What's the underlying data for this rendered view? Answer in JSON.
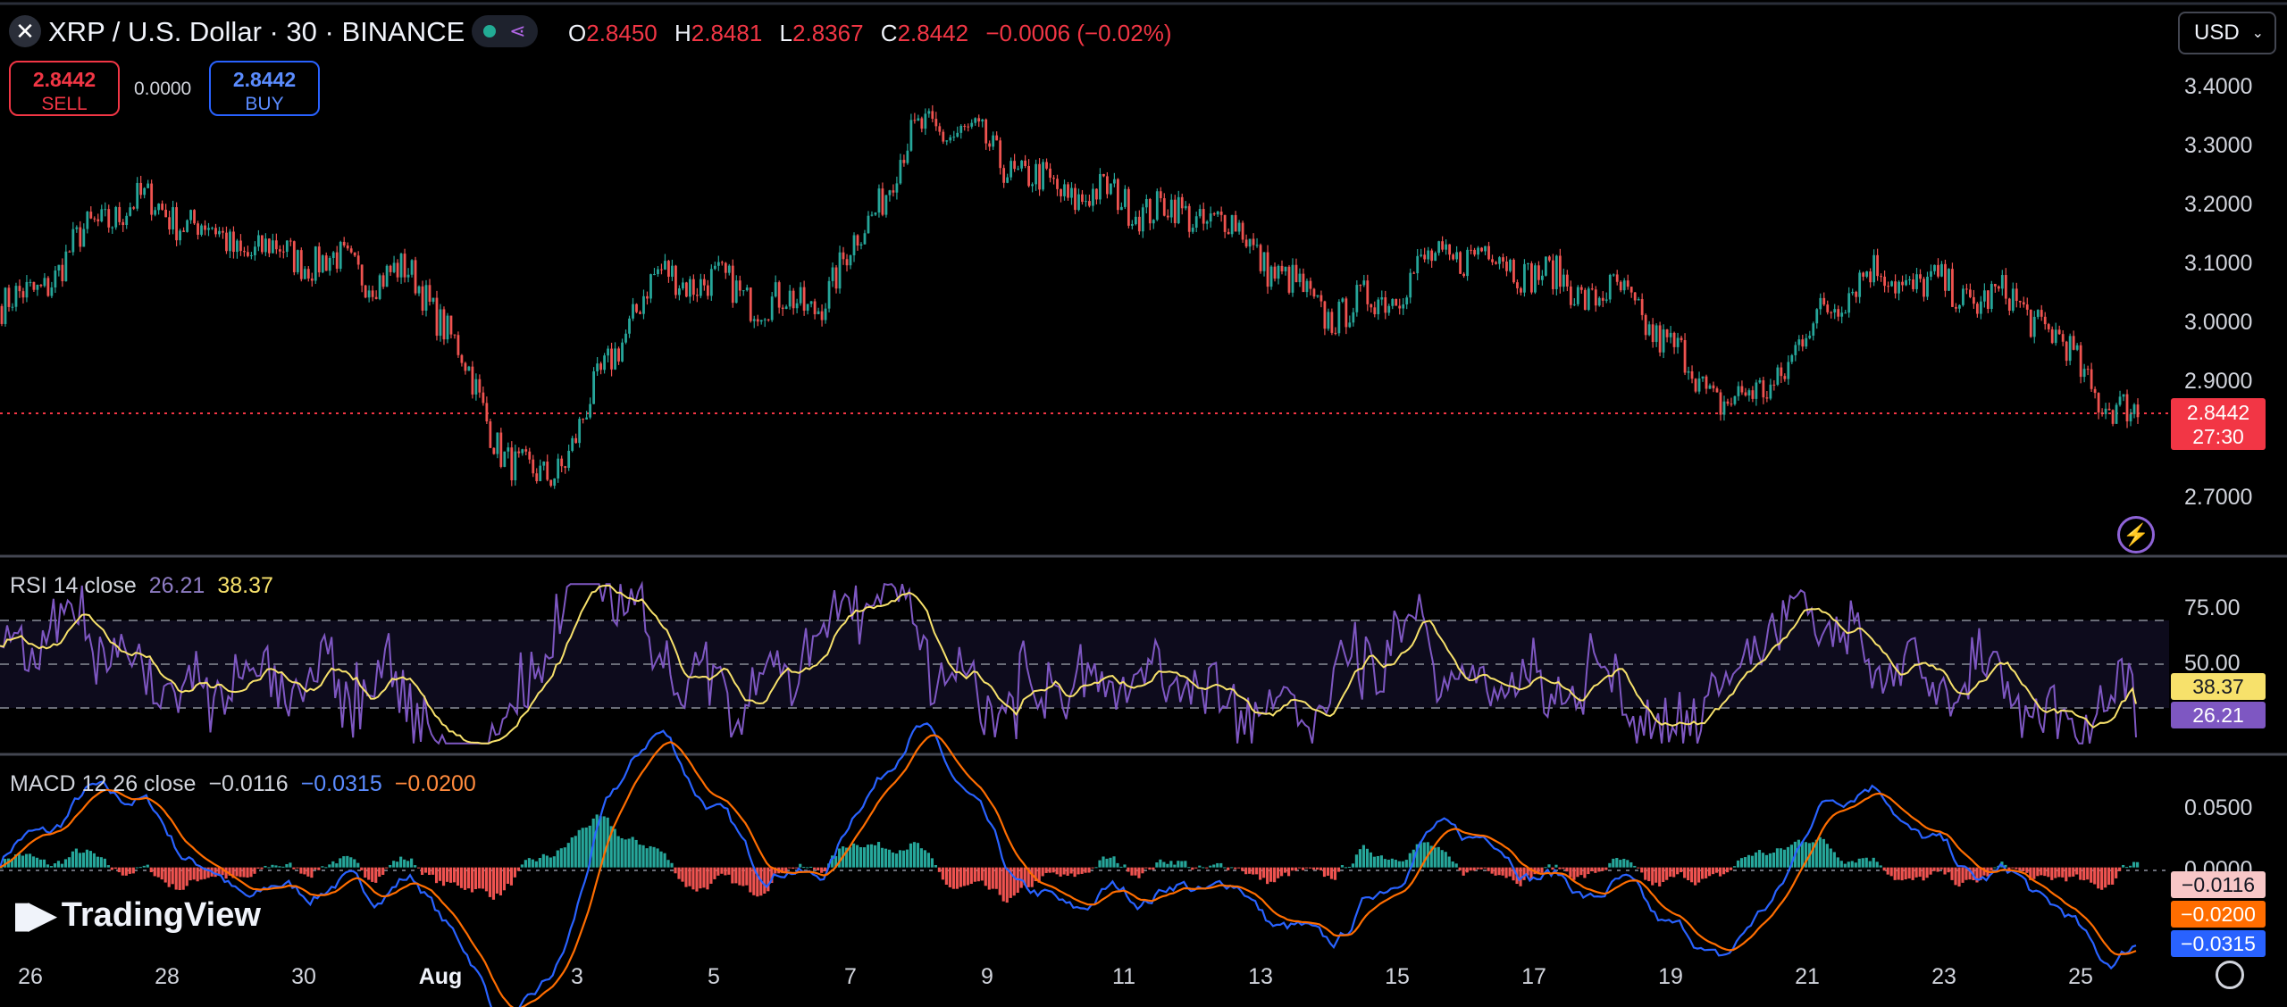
{
  "header": {
    "symbol_title": "XRP / U.S. Dollar · 30 · BINANCE",
    "ohlc": {
      "o_label": "O",
      "o": "2.8450",
      "h_label": "H",
      "h": "2.8481",
      "l_label": "L",
      "l": "2.8367",
      "c_label": "C",
      "c": "2.8442",
      "change": "−0.0006 (−0.02%)"
    },
    "currency": "USD",
    "icons": {
      "close": "close-icon",
      "status": "status-dot-icon",
      "share": "share-icon",
      "chevron": "chevron-down-icon"
    }
  },
  "trade": {
    "sell_price": "2.8442",
    "sell_label": "SELL",
    "spread": "0.0000",
    "buy_price": "2.8442",
    "buy_label": "BUY"
  },
  "price_axis": {
    "ticks": [
      "3.4000",
      "3.3000",
      "3.2000",
      "3.1000",
      "3.0000",
      "2.9000",
      "2.7000"
    ],
    "last_price": "2.8442",
    "countdown": "27:30"
  },
  "rsi": {
    "label": "RSI 14 close",
    "value": "26.21",
    "ma": "38.37",
    "ticks": [
      "75.00",
      "50.00"
    ],
    "tag_ma": "38.37",
    "tag_value": "26.21"
  },
  "macd": {
    "label": "MACD 12 26 close",
    "hist": "−0.0116",
    "macd": "−0.0315",
    "signal": "−0.0200",
    "ticks": [
      "0.0500",
      "0.0000"
    ],
    "tag_hist": "−0.0116",
    "tag_signal": "−0.0200",
    "tag_macd": "−0.0315"
  },
  "time_axis": [
    "26",
    "28",
    "30",
    "Aug",
    "3",
    "5",
    "7",
    "9",
    "11",
    "13",
    "15",
    "17",
    "19",
    "21",
    "23",
    "25"
  ],
  "logo": "TradingView",
  "colors": {
    "up": "#26a69a",
    "down": "#ef5350",
    "rsi": "#7e57c2",
    "rsi_ma": "#f7e16b",
    "macd": "#2962ff",
    "signal": "#ff6d00"
  },
  "chart_data": {
    "type": "line",
    "title": "XRP / U.S. Dollar · 30 · BINANCE",
    "note": "Candlestick price chart (30-min) with RSI and MACD panes",
    "x": [
      "26",
      "28",
      "30",
      "Aug",
      "3",
      "5",
      "7",
      "9",
      "11",
      "13",
      "15",
      "17",
      "19",
      "21",
      "23",
      "25",
      "26"
    ],
    "series": [
      {
        "name": "close",
        "values": [
          3.03,
          3.2,
          3.12,
          3.08,
          2.74,
          3.08,
          3.03,
          3.33,
          3.22,
          3.18,
          3.02,
          3.12,
          3.05,
          2.87,
          3.08,
          3.04,
          2.844
        ]
      }
    ],
    "ylim": [
      2.65,
      3.45
    ],
    "rsi_ylim": [
      20,
      85
    ],
    "macd_ylim": [
      -0.06,
      0.075
    ]
  }
}
